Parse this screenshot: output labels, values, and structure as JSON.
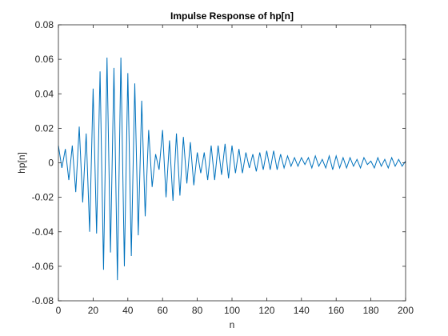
{
  "chart_data": {
    "type": "line",
    "title": "Impulse Response of hp[n]",
    "xlabel": "n",
    "ylabel": "hp[n]",
    "xlim": [
      0,
      200
    ],
    "ylim": [
      -0.08,
      0.08
    ],
    "grid": false,
    "box": true,
    "xticks": [
      0,
      20,
      40,
      60,
      80,
      100,
      120,
      140,
      160,
      180,
      200
    ],
    "xtick_labels": [
      "0",
      "20",
      "40",
      "60",
      "80",
      "100",
      "120",
      "140",
      "160",
      "180",
      "200"
    ],
    "yticks": [
      -0.08,
      -0.06,
      -0.04,
      -0.02,
      0,
      0.02,
      0.04,
      0.06,
      0.08
    ],
    "ytick_labels": [
      "-0.08",
      "-0.06",
      "-0.04",
      "-0.02",
      "0",
      "0.02",
      "0.04",
      "0.06",
      "0.08"
    ],
    "series": [
      {
        "color": "#0072BD",
        "x": [
          0,
          2,
          4,
          6,
          8,
          10,
          12,
          14,
          16,
          18,
          20,
          22,
          24,
          26,
          28,
          30,
          32,
          34,
          36,
          38,
          40,
          42,
          44,
          46,
          48,
          50,
          52,
          54,
          56,
          58,
          60,
          62,
          64,
          66,
          68,
          70,
          72,
          74,
          76,
          78,
          80,
          82,
          84,
          86,
          88,
          90,
          92,
          94,
          96,
          98,
          100,
          102,
          104,
          106,
          108,
          110,
          112,
          114,
          116,
          118,
          120,
          122,
          124,
          126,
          128,
          130,
          132,
          134,
          136,
          138,
          140,
          142,
          144,
          146,
          148,
          150,
          152,
          154,
          156,
          158,
          160,
          162,
          164,
          166,
          168,
          170,
          172,
          174,
          176,
          178,
          180,
          182,
          184,
          186,
          188,
          190,
          192,
          194,
          196,
          198,
          200
        ],
        "y": [
          0.01,
          -0.003,
          0.008,
          -0.01,
          0.01,
          -0.017,
          0.021,
          -0.023,
          0.017,
          -0.04,
          0.043,
          -0.041,
          0.053,
          -0.062,
          0.061,
          -0.052,
          0.055,
          -0.068,
          0.061,
          -0.06,
          0.052,
          -0.054,
          0.046,
          -0.042,
          0.036,
          -0.031,
          0.019,
          -0.014,
          0.005,
          -0.004,
          0.019,
          -0.02,
          0.013,
          -0.022,
          0.017,
          -0.019,
          0.015,
          -0.012,
          0.012,
          -0.013,
          0.006,
          -0.006,
          0.006,
          -0.01,
          0.01,
          -0.01,
          0.01,
          -0.007,
          0.011,
          -0.009,
          0.01,
          -0.006,
          0.008,
          -0.006,
          0.006,
          -0.003,
          0.005,
          -0.005,
          0.006,
          -0.004,
          0.007,
          -0.004,
          0.007,
          -0.004,
          0.005,
          -0.003,
          0.004,
          -0.002,
          0.003,
          -0.002,
          0.003,
          -0.001,
          0.003,
          -0.003,
          0.004,
          -0.002,
          0.002,
          -0.003,
          0.004,
          -0.004,
          0.004,
          -0.003,
          0.003,
          -0.003,
          0.003,
          -0.002,
          0.002,
          -0.003,
          0.003,
          -0.001,
          0.001,
          -0.003,
          0.003,
          -0.002,
          0.002,
          -0.003,
          0.003,
          -0.002,
          0.002,
          -0.002,
          0.001
        ]
      }
    ]
  }
}
